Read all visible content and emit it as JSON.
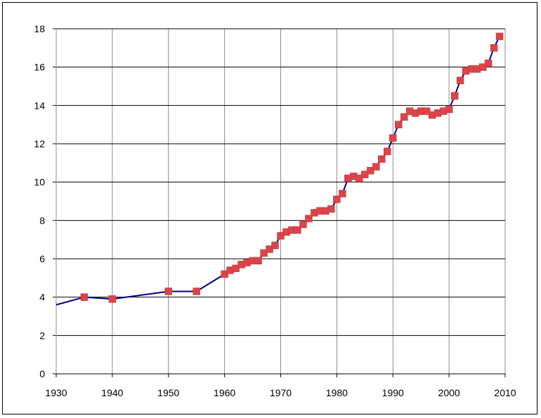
{
  "chart_data": {
    "type": "line",
    "title": "",
    "xlabel": "",
    "ylabel": "",
    "xlim": [
      1930,
      2010
    ],
    "ylim": [
      0,
      18
    ],
    "x_ticks": [
      "1930",
      "1940",
      "1950",
      "1960",
      "1970",
      "1980",
      "1990",
      "2000",
      "2010"
    ],
    "y_ticks": [
      "0",
      "2",
      "4",
      "6",
      "8",
      "10",
      "12",
      "14",
      "16",
      "18"
    ],
    "grid": true,
    "legend": "none",
    "line_color": "#000080",
    "marker_color": "#d9454a",
    "series": [
      {
        "x": [
          1930,
          1935,
          1940,
          1950,
          1955,
          1960,
          1961,
          1962,
          1963,
          1964,
          1965,
          1966,
          1967,
          1968,
          1969,
          1970,
          1971,
          1972,
          1973,
          1974,
          1975,
          1976,
          1977,
          1978,
          1979,
          1980,
          1981,
          1982,
          1983,
          1984,
          1985,
          1986,
          1987,
          1988,
          1989,
          1990,
          1991,
          1992,
          1993,
          1994,
          1995,
          1996,
          1997,
          1998,
          1999,
          2000,
          2001,
          2002,
          2003,
          2004,
          2005,
          2006,
          2007,
          2008,
          2009
        ],
        "y": [
          3.6,
          4.0,
          3.9,
          4.3,
          4.3,
          5.2,
          5.4,
          5.5,
          5.7,
          5.8,
          5.9,
          5.9,
          6.3,
          6.5,
          6.7,
          7.2,
          7.4,
          7.5,
          7.5,
          7.8,
          8.1,
          8.4,
          8.5,
          8.5,
          8.6,
          9.1,
          9.4,
          10.2,
          10.3,
          10.2,
          10.4,
          10.6,
          10.8,
          11.2,
          11.6,
          12.3,
          13.0,
          13.4,
          13.7,
          13.6,
          13.7,
          13.7,
          13.5,
          13.6,
          13.7,
          13.8,
          14.5,
          15.3,
          15.8,
          15.9,
          15.9,
          16.0,
          16.2,
          17.0,
          17.6
        ],
        "markers": [
          false,
          true,
          true,
          true,
          true,
          true,
          true,
          true,
          true,
          true,
          true,
          true,
          true,
          true,
          true,
          true,
          true,
          true,
          true,
          true,
          true,
          true,
          true,
          true,
          true,
          true,
          true,
          true,
          true,
          true,
          true,
          true,
          true,
          true,
          true,
          true,
          true,
          true,
          true,
          true,
          true,
          true,
          true,
          true,
          true,
          true,
          true,
          true,
          true,
          true,
          true,
          true,
          true,
          true,
          true
        ]
      }
    ]
  }
}
